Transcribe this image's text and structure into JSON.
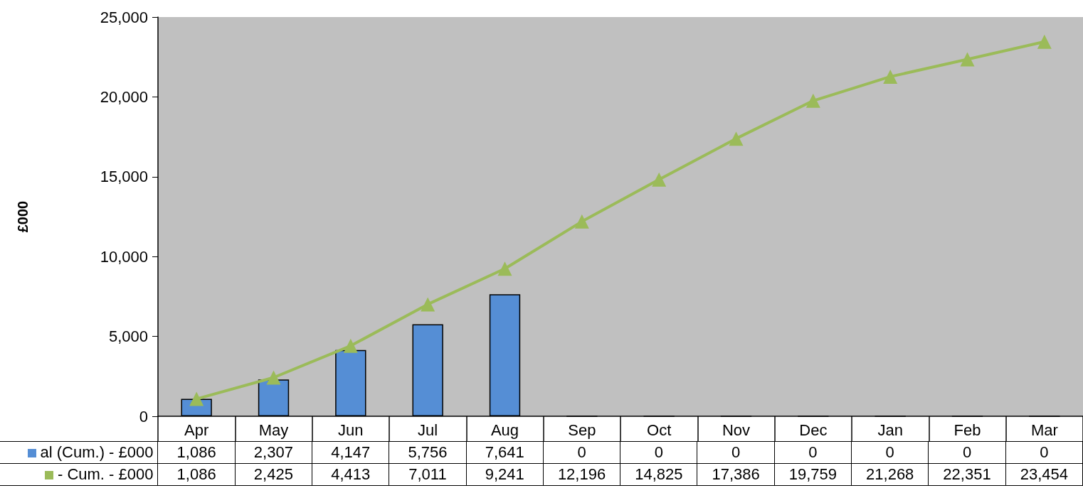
{
  "chart_data": {
    "type": "bar",
    "ylabel": "£000",
    "categories": [
      "Apr",
      "May",
      "Jun",
      "Jul",
      "Aug",
      "Sep",
      "Oct",
      "Nov",
      "Dec",
      "Jan",
      "Feb",
      "Mar"
    ],
    "series": [
      {
        "name": "al (Cum.) - £000",
        "color": "#558ed5",
        "values": [
          1086,
          2307,
          4147,
          5756,
          7641,
          0,
          0,
          0,
          0,
          0,
          0,
          0
        ],
        "value_labels": [
          "1,086",
          "2,307",
          "4,147",
          "5,756",
          "7,641",
          "0",
          "0",
          "0",
          "0",
          "0",
          "0",
          "0"
        ]
      },
      {
        "name": "- Cum. - £000",
        "type": "line",
        "color": "#9bbb59",
        "marker": "triangle",
        "values": [
          1086,
          2425,
          4413,
          7011,
          9241,
          12196,
          14825,
          17386,
          19759,
          21268,
          22351,
          23454
        ],
        "value_labels": [
          "1,086",
          "2,425",
          "4,413",
          "7,011",
          "9,241",
          "12,196",
          "14,825",
          "17,386",
          "19,759",
          "21,268",
          "22,351",
          "23,454"
        ]
      }
    ],
    "ylim": [
      0,
      25000
    ],
    "yticks": [
      {
        "value": 0,
        "label": "0"
      },
      {
        "value": 5000,
        "label": "5,000"
      },
      {
        "value": 10000,
        "label": "10,000"
      },
      {
        "value": 15000,
        "label": "15,000"
      },
      {
        "value": 20000,
        "label": "20,000"
      },
      {
        "value": 25000,
        "label": "25,000"
      }
    ],
    "legend": "bottom"
  }
}
